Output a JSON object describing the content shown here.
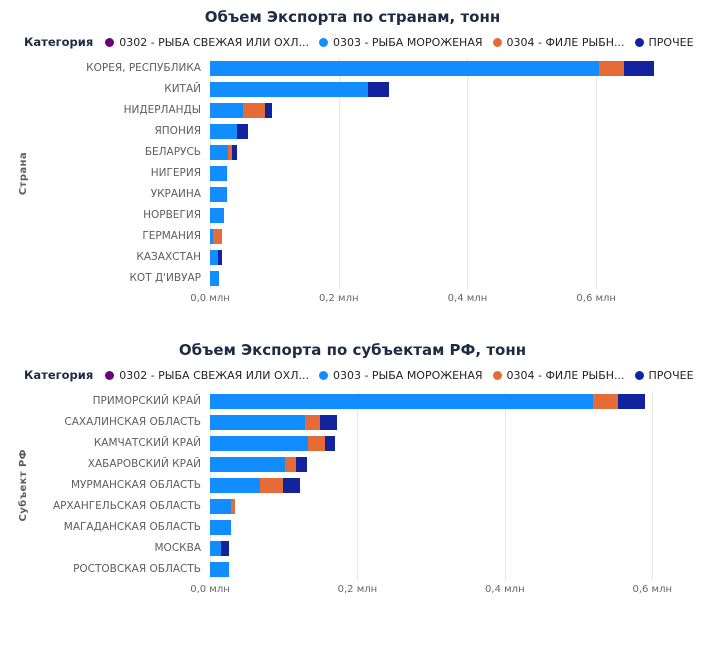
{
  "charts": [
    {
      "title": "Объем Экспорта по странам, тонн",
      "legend_title": "Категория",
      "y_axis_title": "Страна",
      "chart_data": {
        "type": "bar",
        "stacked": true,
        "orientation": "horizontal",
        "unit": "млн тонн",
        "xlim": [
          0,
          0.71
        ],
        "grid": true,
        "legend_position": "top",
        "x_ticks": [
          {
            "value": 0.0,
            "label": "0,0 млн"
          },
          {
            "value": 0.2,
            "label": "0,2 млн"
          },
          {
            "value": 0.4,
            "label": "0,4 млн"
          },
          {
            "value": 0.6,
            "label": "0,6 млн"
          }
        ],
        "categories": [
          "КОРЕЯ, РЕСПУБЛИКА",
          "КИТАЙ",
          "НИДЕРЛАНДЫ",
          "ЯПОНИЯ",
          "БЕЛАРУСЬ",
          "НИГЕРИЯ",
          "УКРАИНА",
          "НОРВЕГИЯ",
          "ГЕРМАНИЯ",
          "КАЗАХСТАН",
          "КОТ Д'ИВУАР"
        ],
        "series": [
          {
            "name": "0302 - РЫБА СВЕЖАЯ ИЛИ ОХЛ...",
            "color": "#6B007B",
            "values": [
              0,
              0,
              0,
              0,
              0,
              0,
              0,
              0,
              0,
              0,
              0
            ]
          },
          {
            "name": "0303 - РЫБА МОРОЖЕНАЯ",
            "color": "#118DFF",
            "values": [
              0.605,
              0.245,
              0.052,
              0.042,
              0.028,
              0.026,
              0.026,
              0.022,
              0.004,
              0.013,
              0.014
            ]
          },
          {
            "name": "0304 - ФИЛЕ РЫБН...",
            "color": "#E66C37",
            "values": [
              0.038,
              0,
              0.033,
              0,
              0.006,
              0,
              0,
              0,
              0.015,
              0,
              0
            ]
          },
          {
            "name": "ПРОЧЕЕ",
            "color": "#12239E",
            "values": [
              0.047,
              0.033,
              0.012,
              0.017,
              0.008,
              0,
              0,
              0,
              0,
              0.006,
              0
            ]
          }
        ]
      }
    },
    {
      "title": "Объем Экспорта по субъектам РФ, тонн",
      "legend_title": "Категория",
      "y_axis_title": "Субъект РФ",
      "chart_data": {
        "type": "bar",
        "stacked": true,
        "orientation": "horizontal",
        "unit": "млн тонн",
        "xlim": [
          0,
          0.62
        ],
        "grid": true,
        "legend_position": "top",
        "x_ticks": [
          {
            "value": 0.0,
            "label": "0,0 млн"
          },
          {
            "value": 0.2,
            "label": "0,2 млн"
          },
          {
            "value": 0.4,
            "label": "0,4 млн"
          },
          {
            "value": 0.6,
            "label": "0,6 млн"
          }
        ],
        "categories": [
          "ПРИМОРСКИЙ КРАЙ",
          "САХАЛИНСКАЯ ОБЛАСТЬ",
          "КАМЧАТСКИЙ КРАЙ",
          "ХАБАРОВСКИЙ КРАЙ",
          "МУРМАНСКАЯ ОБЛАСТЬ",
          "АРХАНГЕЛЬСКАЯ ОБЛАСТЬ",
          "МАГАДАНСКАЯ ОБЛАСТЬ",
          "МОСКВА",
          "РОСТОВСКАЯ ОБЛАСТЬ"
        ],
        "series": [
          {
            "name": "0302 - РЫБА СВЕЖАЯ ИЛИ ОХЛ...",
            "color": "#6B007B",
            "values": [
              0,
              0,
              0,
              0,
              0,
              0,
              0,
              0,
              0
            ]
          },
          {
            "name": "0303 - РЫБА МОРОЖЕНАЯ",
            "color": "#118DFF",
            "values": [
              0.52,
              0.129,
              0.133,
              0.102,
              0.068,
              0.028,
              0.028,
              0.015,
              0.026
            ]
          },
          {
            "name": "0304 - ФИЛЕ РЫБН...",
            "color": "#E66C37",
            "values": [
              0.034,
              0.02,
              0.023,
              0.015,
              0.031,
              0.006,
              0,
              0,
              0
            ]
          },
          {
            "name": "ПРОЧЕЕ",
            "color": "#12239E",
            "values": [
              0.036,
              0.023,
              0.014,
              0.015,
              0.023,
              0,
              0,
              0.011,
              0
            ]
          }
        ]
      }
    }
  ]
}
